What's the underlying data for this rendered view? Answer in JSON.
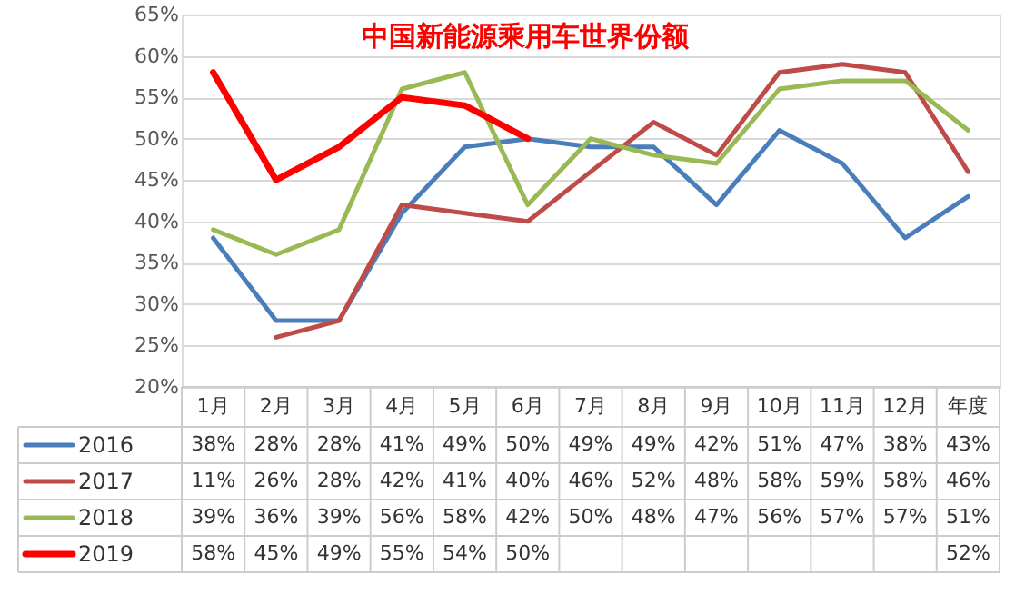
{
  "chart_data": {
    "type": "line",
    "title": "中国新能源乘用车世界份额",
    "categories": [
      "1月",
      "2月",
      "3月",
      "4月",
      "5月",
      "6月",
      "7月",
      "8月",
      "9月",
      "10月",
      "11月",
      "12月",
      "年度"
    ],
    "series": [
      {
        "name": "2016",
        "color": "#4a7ebb",
        "values": [
          38,
          28,
          28,
          41,
          49,
          50,
          49,
          49,
          42,
          51,
          47,
          38,
          43
        ],
        "value_labels": [
          "38%",
          "28%",
          "28%",
          "41%",
          "49%",
          "50%",
          "49%",
          "49%",
          "42%",
          "51%",
          "47%",
          "38%",
          "43%"
        ]
      },
      {
        "name": "2017",
        "color": "#be4b48",
        "values": [
          null,
          26,
          28,
          42,
          41,
          40,
          46,
          52,
          48,
          58,
          59,
          58,
          46
        ],
        "value_labels": [
          "11%",
          "26%",
          "28%",
          "42%",
          "41%",
          "40%",
          "46%",
          "52%",
          "48%",
          "58%",
          "59%",
          "58%",
          "46%"
        ]
      },
      {
        "name": "2018",
        "color": "#98b954",
        "values": [
          39,
          36,
          39,
          56,
          58,
          42,
          50,
          48,
          47,
          56,
          57,
          57,
          51
        ],
        "value_labels": [
          "39%",
          "36%",
          "39%",
          "56%",
          "58%",
          "42%",
          "50%",
          "48%",
          "47%",
          "56%",
          "57%",
          "57%",
          "51%"
        ]
      },
      {
        "name": "2019",
        "color": "#ff0000",
        "values": [
          58,
          45,
          49,
          55,
          54,
          50,
          null,
          null,
          null,
          null,
          null,
          null,
          null
        ],
        "value_labels": [
          "58%",
          "45%",
          "49%",
          "55%",
          "54%",
          "50%",
          null,
          null,
          null,
          null,
          null,
          null,
          "52%"
        ]
      }
    ],
    "ylim": [
      20,
      65
    ],
    "yticks": [
      {
        "value": 20,
        "label": "20%"
      },
      {
        "value": 25,
        "label": "25%"
      },
      {
        "value": 30,
        "label": "30%"
      },
      {
        "value": 35,
        "label": "35%"
      },
      {
        "value": 40,
        "label": "40%"
      },
      {
        "value": 45,
        "label": "45%"
      },
      {
        "value": 50,
        "label": "50%"
      },
      {
        "value": 55,
        "label": "55%"
      },
      {
        "value": 60,
        "label": "60%"
      },
      {
        "value": 65,
        "label": "65%"
      }
    ],
    "grid": "y",
    "legend": "bottom left",
    "marker": "none",
    "line_style": "solid"
  }
}
